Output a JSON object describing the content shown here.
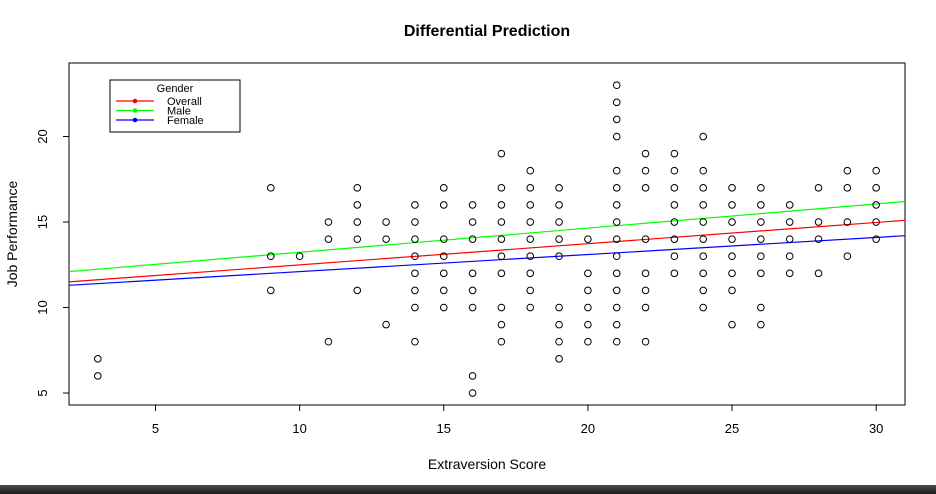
{
  "chart_data": {
    "type": "scatter",
    "title": "Differential Prediction",
    "xlabel": "Extraversion Score",
    "ylabel": "Job Performance",
    "xlim": [
      2,
      31
    ],
    "ylim": [
      4.3,
      24.3
    ],
    "xticks": [
      5,
      10,
      15,
      20,
      25,
      30
    ],
    "yticks": [
      5,
      10,
      15,
      20
    ],
    "grid": false,
    "legend": {
      "title": "Gender",
      "placement": "top-left",
      "entries": [
        {
          "label": "Overall",
          "color": "#ff0000"
        },
        {
          "label": "Male",
          "color": "#00ff00"
        },
        {
          "label": "Female",
          "color": "#0000ff"
        }
      ]
    },
    "lines": [
      {
        "name": "Overall",
        "color": "#ff0000",
        "x": [
          2,
          31
        ],
        "y": [
          11.5,
          15.1
        ]
      },
      {
        "name": "Male",
        "color": "#00ff00",
        "x": [
          2,
          31
        ],
        "y": [
          12.1,
          16.2
        ]
      },
      {
        "name": "Female",
        "color": "#0000ff",
        "x": [
          2,
          31
        ],
        "y": [
          11.3,
          14.2
        ]
      }
    ],
    "points": [
      [
        3,
        6
      ],
      [
        3,
        7
      ],
      [
        9,
        11
      ],
      [
        9,
        13
      ],
      [
        9,
        17
      ],
      [
        10,
        13
      ],
      [
        11,
        8
      ],
      [
        11,
        14
      ],
      [
        11,
        15
      ],
      [
        12,
        11
      ],
      [
        12,
        14
      ],
      [
        12,
        15
      ],
      [
        12,
        16
      ],
      [
        12,
        17
      ],
      [
        13,
        9
      ],
      [
        13,
        14
      ],
      [
        13,
        15
      ],
      [
        14,
        8
      ],
      [
        14,
        10
      ],
      [
        14,
        11
      ],
      [
        14,
        12
      ],
      [
        14,
        13
      ],
      [
        14,
        14
      ],
      [
        14,
        15
      ],
      [
        14,
        16
      ],
      [
        15,
        10
      ],
      [
        15,
        11
      ],
      [
        15,
        12
      ],
      [
        15,
        13
      ],
      [
        15,
        14
      ],
      [
        15,
        16
      ],
      [
        15,
        17
      ],
      [
        16,
        5
      ],
      [
        16,
        6
      ],
      [
        16,
        10
      ],
      [
        16,
        11
      ],
      [
        16,
        12
      ],
      [
        16,
        14
      ],
      [
        16,
        15
      ],
      [
        16,
        16
      ],
      [
        17,
        8
      ],
      [
        17,
        9
      ],
      [
        17,
        10
      ],
      [
        17,
        12
      ],
      [
        17,
        13
      ],
      [
        17,
        14
      ],
      [
        17,
        15
      ],
      [
        17,
        16
      ],
      [
        17,
        17
      ],
      [
        17,
        19
      ],
      [
        18,
        10
      ],
      [
        18,
        11
      ],
      [
        18,
        12
      ],
      [
        18,
        13
      ],
      [
        18,
        14
      ],
      [
        18,
        15
      ],
      [
        18,
        16
      ],
      [
        18,
        17
      ],
      [
        18,
        18
      ],
      [
        19,
        7
      ],
      [
        19,
        8
      ],
      [
        19,
        9
      ],
      [
        19,
        10
      ],
      [
        19,
        13
      ],
      [
        19,
        14
      ],
      [
        19,
        15
      ],
      [
        19,
        16
      ],
      [
        19,
        17
      ],
      [
        20,
        8
      ],
      [
        20,
        9
      ],
      [
        20,
        10
      ],
      [
        20,
        11
      ],
      [
        20,
        12
      ],
      [
        20,
        14
      ],
      [
        21,
        8
      ],
      [
        21,
        9
      ],
      [
        21,
        10
      ],
      [
        21,
        11
      ],
      [
        21,
        12
      ],
      [
        21,
        13
      ],
      [
        21,
        14
      ],
      [
        21,
        15
      ],
      [
        21,
        16
      ],
      [
        21,
        17
      ],
      [
        21,
        18
      ],
      [
        21,
        20
      ],
      [
        21,
        21
      ],
      [
        21,
        22
      ],
      [
        21,
        23
      ],
      [
        22,
        8
      ],
      [
        22,
        10
      ],
      [
        22,
        11
      ],
      [
        22,
        12
      ],
      [
        22,
        14
      ],
      [
        22,
        17
      ],
      [
        22,
        18
      ],
      [
        22,
        19
      ],
      [
        23,
        12
      ],
      [
        23,
        13
      ],
      [
        23,
        14
      ],
      [
        23,
        15
      ],
      [
        23,
        16
      ],
      [
        23,
        17
      ],
      [
        23,
        18
      ],
      [
        23,
        19
      ],
      [
        24,
        10
      ],
      [
        24,
        11
      ],
      [
        24,
        12
      ],
      [
        24,
        13
      ],
      [
        24,
        14
      ],
      [
        24,
        15
      ],
      [
        24,
        16
      ],
      [
        24,
        17
      ],
      [
        24,
        18
      ],
      [
        24,
        20
      ],
      [
        25,
        9
      ],
      [
        25,
        11
      ],
      [
        25,
        12
      ],
      [
        25,
        13
      ],
      [
        25,
        14
      ],
      [
        25,
        15
      ],
      [
        25,
        16
      ],
      [
        25,
        17
      ],
      [
        26,
        9
      ],
      [
        26,
        10
      ],
      [
        26,
        12
      ],
      [
        26,
        13
      ],
      [
        26,
        14
      ],
      [
        26,
        15
      ],
      [
        26,
        16
      ],
      [
        26,
        17
      ],
      [
        27,
        12
      ],
      [
        27,
        13
      ],
      [
        27,
        14
      ],
      [
        27,
        15
      ],
      [
        27,
        16
      ],
      [
        28,
        12
      ],
      [
        28,
        14
      ],
      [
        28,
        15
      ],
      [
        28,
        17
      ],
      [
        29,
        13
      ],
      [
        29,
        15
      ],
      [
        29,
        17
      ],
      [
        29,
        18
      ],
      [
        30,
        14
      ],
      [
        30,
        15
      ],
      [
        30,
        16
      ],
      [
        30,
        17
      ],
      [
        30,
        18
      ]
    ]
  }
}
